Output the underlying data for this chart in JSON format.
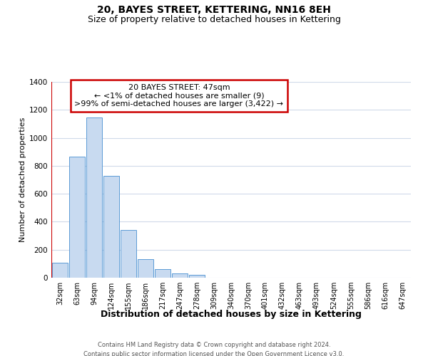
{
  "title": "20, BAYES STREET, KETTERING, NN16 8EH",
  "subtitle": "Size of property relative to detached houses in Kettering",
  "xlabel": "Distribution of detached houses by size in Kettering",
  "ylabel": "Number of detached properties",
  "bar_labels": [
    "32sqm",
    "63sqm",
    "94sqm",
    "124sqm",
    "155sqm",
    "186sqm",
    "217sqm",
    "247sqm",
    "278sqm",
    "309sqm",
    "340sqm",
    "370sqm",
    "401sqm",
    "432sqm",
    "463sqm",
    "493sqm",
    "524sqm",
    "555sqm",
    "586sqm",
    "616sqm",
    "647sqm"
  ],
  "bar_values": [
    107,
    863,
    1143,
    730,
    340,
    130,
    62,
    30,
    20,
    0,
    0,
    0,
    0,
    0,
    0,
    0,
    0,
    0,
    0,
    0,
    0
  ],
  "bar_color": "#c8daf0",
  "bar_edge_color": "#5b9bd5",
  "ylim": [
    0,
    1400
  ],
  "yticks": [
    0,
    200,
    400,
    600,
    800,
    1000,
    1200,
    1400
  ],
  "annotation_title": "20 BAYES STREET: 47sqm",
  "annotation_line1": "← <1% of detached houses are smaller (9)",
  "annotation_line2": ">99% of semi-detached houses are larger (3,422) →",
  "annotation_box_color": "#ffffff",
  "annotation_border_color": "#cc0000",
  "footnote1": "Contains HM Land Registry data © Crown copyright and database right 2024.",
  "footnote2": "Contains public sector information licensed under the Open Government Licence v3.0.",
  "grid_color": "#d0daea",
  "background_color": "#ffffff",
  "title_fontsize": 10,
  "subtitle_fontsize": 9,
  "xlabel_fontsize": 9,
  "ylabel_fontsize": 8,
  "tick_fontsize": 7,
  "annot_fontsize": 8,
  "footnote_fontsize": 6
}
